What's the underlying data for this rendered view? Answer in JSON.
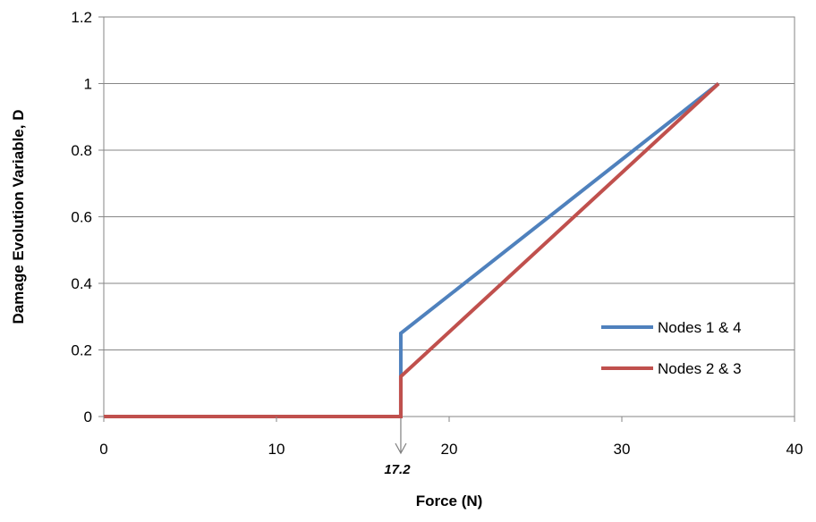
{
  "chart_data": {
    "type": "line",
    "title": "",
    "xlabel": "Force (N)",
    "ylabel": "Damage Evolution  Variable,  D",
    "xlim": [
      0,
      40
    ],
    "ylim": [
      0,
      1.2
    ],
    "x_ticks": [
      0,
      10,
      20,
      30,
      40
    ],
    "x_tick_labels": [
      "0",
      "10",
      "20",
      "30",
      "40"
    ],
    "y_ticks": [
      0,
      0.2,
      0.4,
      0.6,
      0.8,
      1,
      1.2
    ],
    "y_tick_labels": [
      "0",
      "0.2",
      "0.4",
      "0.6",
      "0.8",
      "1",
      "1.2"
    ],
    "grid": "horizontal",
    "legend_position": "right",
    "series": [
      {
        "name": "Nodes 1 & 4",
        "color": "#4f81bd",
        "points": [
          [
            0,
            0
          ],
          [
            17.2,
            0
          ],
          [
            17.2,
            0.25
          ],
          [
            35.6,
            1.0
          ]
        ]
      },
      {
        "name": "Nodes 2 & 3",
        "color": "#c0504d",
        "points": [
          [
            0,
            0
          ],
          [
            17.2,
            0
          ],
          [
            17.2,
            0.12
          ],
          [
            35.6,
            1.0
          ]
        ]
      }
    ],
    "annotations": [
      {
        "text": "17.2",
        "x": 17.2,
        "type": "arrow-down-to-axis"
      }
    ]
  },
  "colors": {
    "grid": "#868686",
    "axis": "#868686",
    "arrow": "#7f7f7f"
  }
}
